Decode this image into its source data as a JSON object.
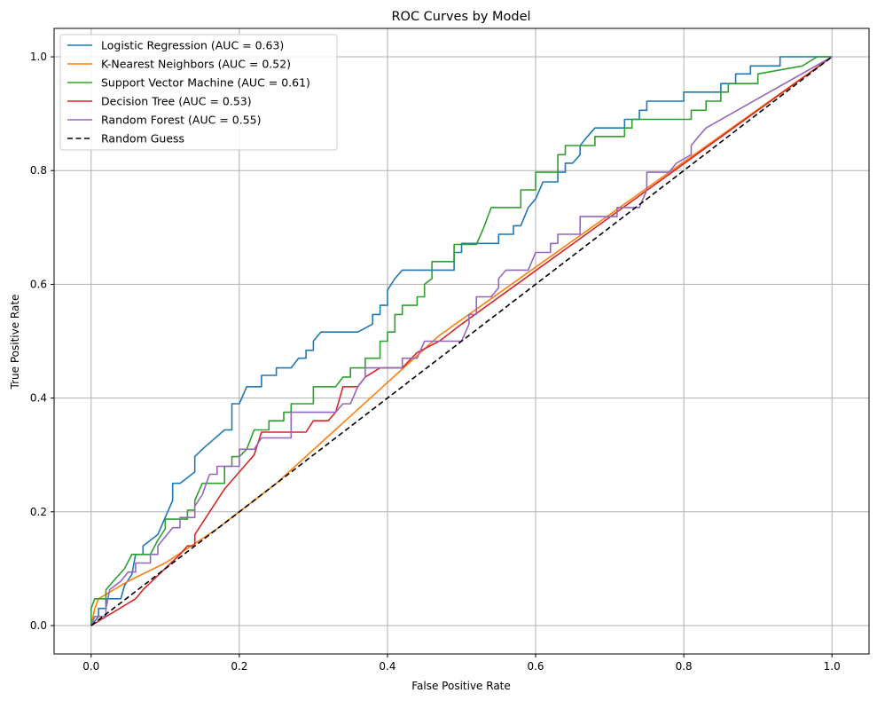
{
  "chart_data": {
    "type": "line",
    "title": "ROC Curves by Model",
    "xlabel": "False Positive Rate",
    "ylabel": "True Positive Rate",
    "xlim": [
      -0.05,
      1.05
    ],
    "ylim": [
      -0.05,
      1.05
    ],
    "xticks": [
      "0.0",
      "0.2",
      "0.4",
      "0.6",
      "0.8",
      "1.0"
    ],
    "yticks": [
      "0.0",
      "0.2",
      "0.4",
      "0.6",
      "0.8",
      "1.0"
    ],
    "grid": true,
    "legend_position": "top-left",
    "series": [
      {
        "name": "Logistic Regression (AUC = 0.63)",
        "color": "#1f77b4",
        "dash": false,
        "points": [
          [
            0,
            0
          ],
          [
            0.01,
            0.016
          ],
          [
            0.01,
            0.03
          ],
          [
            0.02,
            0.03
          ],
          [
            0.02,
            0.047
          ],
          [
            0.04,
            0.047
          ],
          [
            0.045,
            0.07
          ],
          [
            0.055,
            0.09
          ],
          [
            0.06,
            0.125
          ],
          [
            0.07,
            0.125
          ],
          [
            0.07,
            0.14
          ],
          [
            0.09,
            0.16
          ],
          [
            0.1,
            0.19
          ],
          [
            0.11,
            0.22
          ],
          [
            0.11,
            0.25
          ],
          [
            0.12,
            0.25
          ],
          [
            0.14,
            0.27
          ],
          [
            0.14,
            0.297
          ],
          [
            0.15,
            0.31
          ],
          [
            0.18,
            0.344
          ],
          [
            0.19,
            0.344
          ],
          [
            0.19,
            0.39
          ],
          [
            0.2,
            0.39
          ],
          [
            0.21,
            0.42
          ],
          [
            0.23,
            0.42
          ],
          [
            0.23,
            0.44
          ],
          [
            0.25,
            0.44
          ],
          [
            0.25,
            0.453
          ],
          [
            0.27,
            0.453
          ],
          [
            0.28,
            0.47
          ],
          [
            0.29,
            0.47
          ],
          [
            0.29,
            0.484
          ],
          [
            0.3,
            0.484
          ],
          [
            0.3,
            0.5
          ],
          [
            0.31,
            0.516
          ],
          [
            0.36,
            0.516
          ],
          [
            0.38,
            0.53
          ],
          [
            0.38,
            0.547
          ],
          [
            0.39,
            0.547
          ],
          [
            0.39,
            0.563
          ],
          [
            0.4,
            0.563
          ],
          [
            0.4,
            0.59
          ],
          [
            0.41,
            0.61
          ],
          [
            0.42,
            0.625
          ],
          [
            0.49,
            0.625
          ],
          [
            0.49,
            0.656
          ],
          [
            0.5,
            0.656
          ],
          [
            0.5,
            0.672
          ],
          [
            0.55,
            0.672
          ],
          [
            0.55,
            0.688
          ],
          [
            0.57,
            0.688
          ],
          [
            0.57,
            0.703
          ],
          [
            0.58,
            0.703
          ],
          [
            0.59,
            0.735
          ],
          [
            0.6,
            0.75
          ],
          [
            0.61,
            0.78
          ],
          [
            0.63,
            0.78
          ],
          [
            0.63,
            0.797
          ],
          [
            0.64,
            0.797
          ],
          [
            0.64,
            0.813
          ],
          [
            0.65,
            0.813
          ],
          [
            0.66,
            0.828
          ],
          [
            0.66,
            0.844
          ],
          [
            0.67,
            0.86
          ],
          [
            0.68,
            0.875
          ],
          [
            0.72,
            0.875
          ],
          [
            0.72,
            0.89
          ],
          [
            0.74,
            0.89
          ],
          [
            0.74,
            0.906
          ],
          [
            0.75,
            0.906
          ],
          [
            0.75,
            0.922
          ],
          [
            0.8,
            0.922
          ],
          [
            0.8,
            0.938
          ],
          [
            0.85,
            0.938
          ],
          [
            0.85,
            0.953
          ],
          [
            0.87,
            0.953
          ],
          [
            0.87,
            0.97
          ],
          [
            0.89,
            0.97
          ],
          [
            0.89,
            0.984
          ],
          [
            0.93,
            0.984
          ],
          [
            0.93,
            1.0
          ],
          [
            1,
            1
          ]
        ]
      },
      {
        "name": "K-Nearest Neighbors (AUC = 0.52)",
        "color": "#ff7f0e",
        "dash": false,
        "points": [
          [
            0,
            0
          ],
          [
            0.005,
            0.03
          ],
          [
            0.01,
            0.047
          ],
          [
            0.05,
            0.078
          ],
          [
            0.1,
            0.11
          ],
          [
            0.17,
            0.17
          ],
          [
            0.25,
            0.25
          ],
          [
            0.47,
            0.51
          ],
          [
            1,
            1
          ]
        ]
      },
      {
        "name": "Support Vector Machine (AUC = 0.61)",
        "color": "#2ca02c",
        "dash": false,
        "points": [
          [
            0,
            0
          ],
          [
            0,
            0.03
          ],
          [
            0.005,
            0.047
          ],
          [
            0.02,
            0.047
          ],
          [
            0.02,
            0.063
          ],
          [
            0.03,
            0.078
          ],
          [
            0.045,
            0.1
          ],
          [
            0.055,
            0.125
          ],
          [
            0.08,
            0.125
          ],
          [
            0.09,
            0.15
          ],
          [
            0.1,
            0.17
          ],
          [
            0.1,
            0.187
          ],
          [
            0.13,
            0.187
          ],
          [
            0.13,
            0.203
          ],
          [
            0.14,
            0.203
          ],
          [
            0.14,
            0.22
          ],
          [
            0.15,
            0.25
          ],
          [
            0.18,
            0.25
          ],
          [
            0.18,
            0.28
          ],
          [
            0.19,
            0.28
          ],
          [
            0.19,
            0.297
          ],
          [
            0.2,
            0.297
          ],
          [
            0.21,
            0.31
          ],
          [
            0.22,
            0.344
          ],
          [
            0.24,
            0.344
          ],
          [
            0.24,
            0.36
          ],
          [
            0.26,
            0.36
          ],
          [
            0.26,
            0.375
          ],
          [
            0.27,
            0.375
          ],
          [
            0.27,
            0.39
          ],
          [
            0.3,
            0.39
          ],
          [
            0.3,
            0.42
          ],
          [
            0.33,
            0.42
          ],
          [
            0.34,
            0.437
          ],
          [
            0.35,
            0.437
          ],
          [
            0.35,
            0.453
          ],
          [
            0.37,
            0.453
          ],
          [
            0.37,
            0.47
          ],
          [
            0.39,
            0.47
          ],
          [
            0.39,
            0.5
          ],
          [
            0.4,
            0.5
          ],
          [
            0.4,
            0.516
          ],
          [
            0.41,
            0.516
          ],
          [
            0.41,
            0.547
          ],
          [
            0.42,
            0.547
          ],
          [
            0.42,
            0.563
          ],
          [
            0.44,
            0.563
          ],
          [
            0.44,
            0.578
          ],
          [
            0.45,
            0.578
          ],
          [
            0.45,
            0.6
          ],
          [
            0.46,
            0.61
          ],
          [
            0.46,
            0.64
          ],
          [
            0.49,
            0.64
          ],
          [
            0.49,
            0.67
          ],
          [
            0.52,
            0.67
          ],
          [
            0.53,
            0.7
          ],
          [
            0.54,
            0.735
          ],
          [
            0.58,
            0.735
          ],
          [
            0.58,
            0.766
          ],
          [
            0.6,
            0.766
          ],
          [
            0.6,
            0.797
          ],
          [
            0.63,
            0.797
          ],
          [
            0.63,
            0.828
          ],
          [
            0.64,
            0.828
          ],
          [
            0.64,
            0.844
          ],
          [
            0.68,
            0.844
          ],
          [
            0.68,
            0.86
          ],
          [
            0.72,
            0.86
          ],
          [
            0.72,
            0.875
          ],
          [
            0.73,
            0.875
          ],
          [
            0.73,
            0.89
          ],
          [
            0.81,
            0.89
          ],
          [
            0.81,
            0.906
          ],
          [
            0.83,
            0.906
          ],
          [
            0.83,
            0.922
          ],
          [
            0.85,
            0.922
          ],
          [
            0.85,
            0.938
          ],
          [
            0.86,
            0.938
          ],
          [
            0.86,
            0.953
          ],
          [
            0.9,
            0.953
          ],
          [
            0.9,
            0.97
          ],
          [
            0.96,
            0.984
          ],
          [
            0.98,
            1.0
          ],
          [
            1,
            1
          ]
        ]
      },
      {
        "name": "Decision Tree (AUC = 0.53)",
        "color": "#d62728",
        "dash": false,
        "points": [
          [
            0,
            0
          ],
          [
            0.06,
            0.047
          ],
          [
            0.07,
            0.063
          ],
          [
            0.12,
            0.125
          ],
          [
            0.13,
            0.14
          ],
          [
            0.14,
            0.14
          ],
          [
            0.14,
            0.16
          ],
          [
            0.16,
            0.2
          ],
          [
            0.18,
            0.24
          ],
          [
            0.2,
            0.27
          ],
          [
            0.22,
            0.3
          ],
          [
            0.23,
            0.34
          ],
          [
            0.29,
            0.34
          ],
          [
            0.3,
            0.36
          ],
          [
            0.32,
            0.36
          ],
          [
            0.33,
            0.375
          ],
          [
            0.34,
            0.42
          ],
          [
            0.36,
            0.42
          ],
          [
            0.37,
            0.437
          ],
          [
            0.39,
            0.453
          ],
          [
            0.42,
            0.453
          ],
          [
            0.44,
            0.48
          ],
          [
            0.47,
            0.5
          ],
          [
            0.5,
            0.53
          ],
          [
            1,
            1
          ]
        ]
      },
      {
        "name": "Random Forest (AUC = 0.55)",
        "color": "#9467bd",
        "dash": false,
        "points": [
          [
            0,
            0
          ],
          [
            0.005,
            0.016
          ],
          [
            0.02,
            0.016
          ],
          [
            0.02,
            0.03
          ],
          [
            0.025,
            0.063
          ],
          [
            0.04,
            0.078
          ],
          [
            0.05,
            0.094
          ],
          [
            0.06,
            0.094
          ],
          [
            0.06,
            0.11
          ],
          [
            0.08,
            0.11
          ],
          [
            0.08,
            0.125
          ],
          [
            0.09,
            0.125
          ],
          [
            0.09,
            0.14
          ],
          [
            0.1,
            0.156
          ],
          [
            0.11,
            0.172
          ],
          [
            0.12,
            0.172
          ],
          [
            0.12,
            0.19
          ],
          [
            0.14,
            0.19
          ],
          [
            0.14,
            0.21
          ],
          [
            0.15,
            0.23
          ],
          [
            0.16,
            0.266
          ],
          [
            0.17,
            0.266
          ],
          [
            0.17,
            0.28
          ],
          [
            0.2,
            0.28
          ],
          [
            0.2,
            0.31
          ],
          [
            0.22,
            0.31
          ],
          [
            0.23,
            0.33
          ],
          [
            0.27,
            0.33
          ],
          [
            0.27,
            0.375
          ],
          [
            0.33,
            0.375
          ],
          [
            0.34,
            0.39
          ],
          [
            0.35,
            0.39
          ],
          [
            0.36,
            0.42
          ],
          [
            0.37,
            0.437
          ],
          [
            0.37,
            0.453
          ],
          [
            0.42,
            0.453
          ],
          [
            0.42,
            0.47
          ],
          [
            0.44,
            0.47
          ],
          [
            0.45,
            0.5
          ],
          [
            0.5,
            0.5
          ],
          [
            0.51,
            0.53
          ],
          [
            0.51,
            0.547
          ],
          [
            0.52,
            0.547
          ],
          [
            0.52,
            0.578
          ],
          [
            0.54,
            0.578
          ],
          [
            0.55,
            0.594
          ],
          [
            0.55,
            0.61
          ],
          [
            0.56,
            0.625
          ],
          [
            0.59,
            0.625
          ],
          [
            0.6,
            0.656
          ],
          [
            0.62,
            0.656
          ],
          [
            0.62,
            0.672
          ],
          [
            0.63,
            0.672
          ],
          [
            0.63,
            0.688
          ],
          [
            0.66,
            0.688
          ],
          [
            0.66,
            0.719
          ],
          [
            0.71,
            0.719
          ],
          [
            0.71,
            0.735
          ],
          [
            0.74,
            0.735
          ],
          [
            0.75,
            0.766
          ],
          [
            0.75,
            0.797
          ],
          [
            0.78,
            0.797
          ],
          [
            0.79,
            0.813
          ],
          [
            0.81,
            0.828
          ],
          [
            0.81,
            0.844
          ],
          [
            0.82,
            0.86
          ],
          [
            0.83,
            0.875
          ],
          [
            1,
            1
          ]
        ]
      },
      {
        "name": "Random Guess",
        "color": "#000000",
        "dash": true,
        "points": [
          [
            0,
            0
          ],
          [
            1,
            1
          ]
        ]
      }
    ]
  }
}
